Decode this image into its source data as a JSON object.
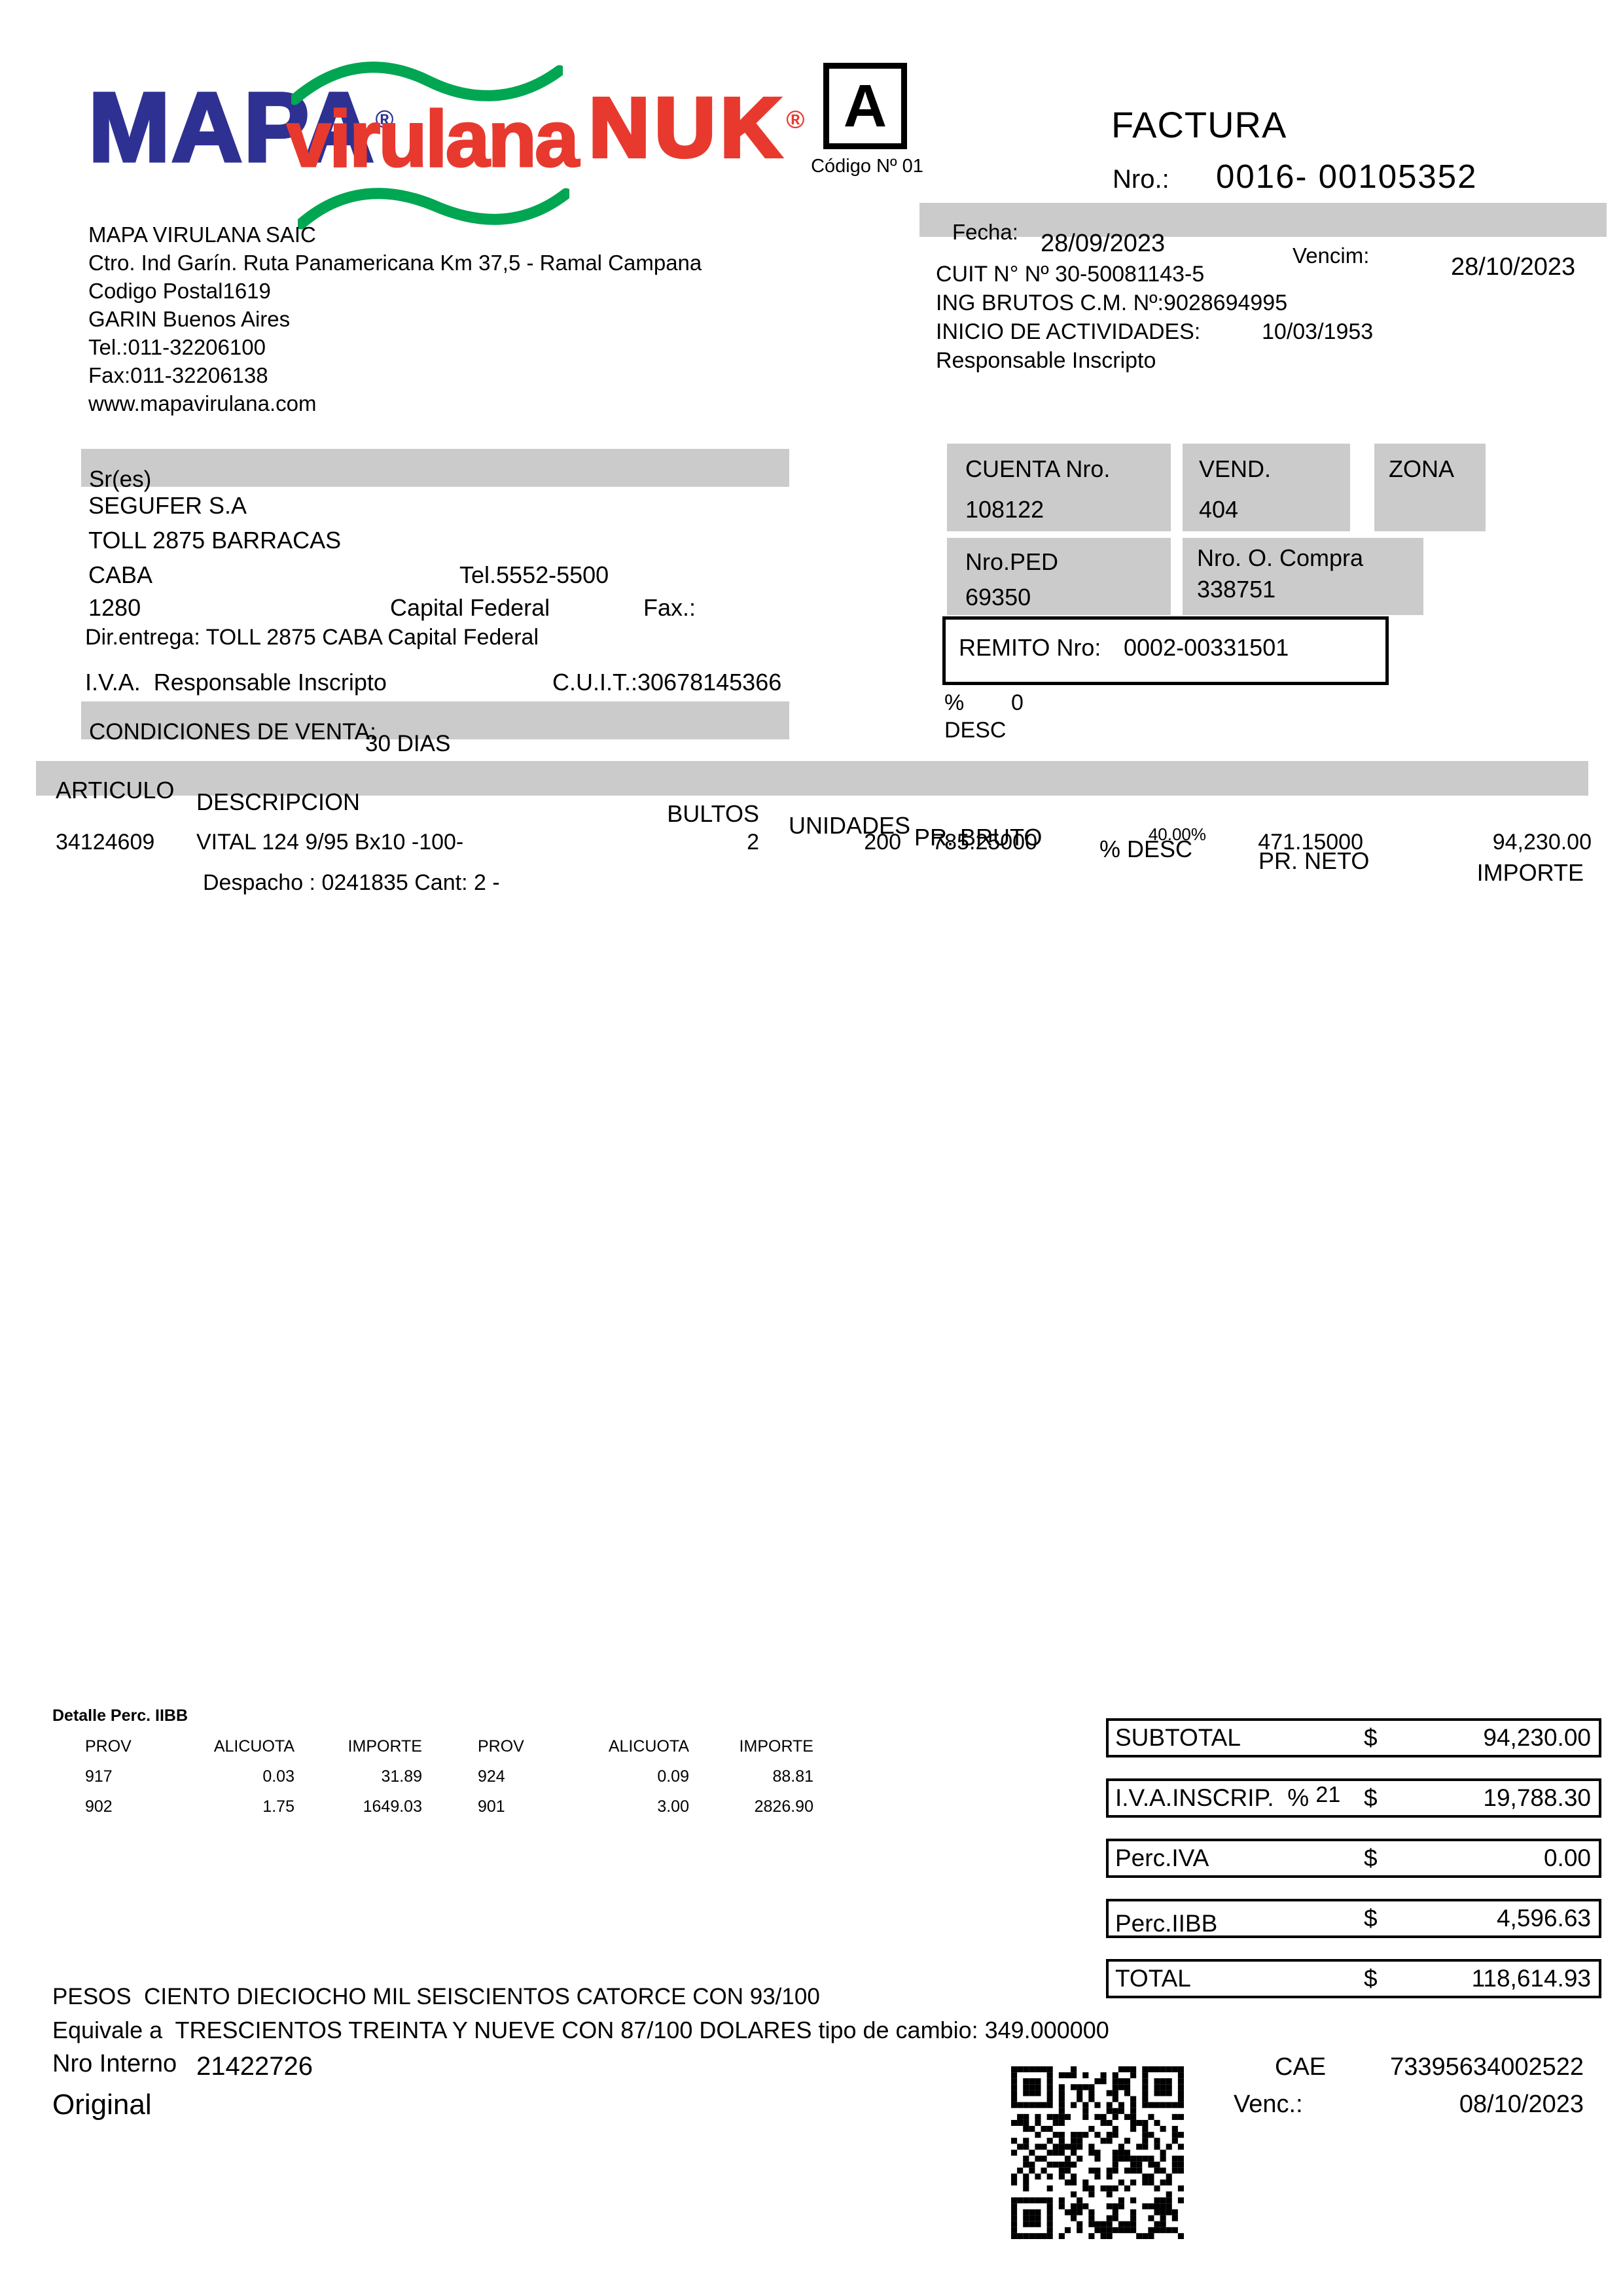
{
  "colors": {
    "mapa_blue": "#2e3192",
    "brand_red": "#e8392e",
    "wave_green": "#00a651",
    "bar_gray": "#cbcbcb"
  },
  "logos": {
    "mapa": "MAPA",
    "virulana": "virulana",
    "nuk": "NUK",
    "registered": "®"
  },
  "doc": {
    "letter": "A",
    "code_label": "Código Nº 01",
    "title": "FACTURA",
    "nro_label": "Nro.:",
    "nro_value": "0016- 00105352",
    "fecha_label": "Fecha:",
    "fecha_value": "28/09/2023",
    "vencim_label": "Vencim:",
    "vencim_value": "28/10/2023"
  },
  "company": {
    "lines": [
      "MAPA VIRULANA SAIC",
      "Ctro. Ind Garín. Ruta Panamericana Km 37,5 - Ramal Campana",
      "Codigo Postal1619",
      "GARIN Buenos Aires",
      "Tel.:011-32206100",
      "Fax:011-32206138",
      "www.mapavirulana.com"
    ]
  },
  "fiscal": {
    "cuit": "CUIT N° Nº 30-50081143-5",
    "ing_brutos": "ING BRUTOS C.M. Nº:9028694995",
    "inicio_label": "INICIO DE ACTIVIDADES:",
    "inicio_value": "10/03/1953",
    "condicion": "Responsable Inscripto"
  },
  "customer": {
    "sres_label": "Sr(es)",
    "name": "SEGUFER S.A",
    "address": "TOLL 2875 BARRACAS",
    "city": "CABA",
    "tel": "Tel.5552-5500",
    "zip": "1280",
    "province": "Capital Federal",
    "fax_label": "Fax.:",
    "dir_entrega": "Dir.entrega: TOLL 2875 CABA Capital Federal",
    "iva_line": "I.V.A.  Responsable Inscripto",
    "cuit": "C.U.I.T.:30678145366",
    "cond_venta_label": "CONDICIONES DE VENTA:",
    "cond_venta_value": "30 DIAS"
  },
  "account": {
    "cuenta_label": "CUENTA Nro.",
    "cuenta_value": "108122",
    "vend_label": "VEND.",
    "vend_value": "404",
    "zona_label": "ZONA",
    "ped_label": "Nro.PED",
    "ped_value": "69350",
    "ocompra_label": "Nro. O. Compra",
    "ocompra_value": "338751",
    "remito_label": "REMITO Nro:",
    "remito_value": "0002-00331501",
    "desc_pct_label": "%",
    "desc_pct_value": "0",
    "desc_label": "DESC"
  },
  "items": {
    "headers": {
      "articulo": "ARTICULO",
      "descripcion": "DESCRIPCION",
      "bultos": "BULTOS",
      "unidades": "UNIDADES",
      "pr_bruto": "PR. BRUTO",
      "desc": "% DESC",
      "pr_neto": "PR. NETO",
      "importe": "IMPORTE"
    },
    "row": {
      "articulo": "34124609",
      "descripcion": "VITAL 124 9/95 Bx10 -100-",
      "bultos": "2",
      "unidades": "200",
      "pr_bruto": "785.25000",
      "desc": "40.00%",
      "pr_neto": "471.15000",
      "importe": "94,230.00",
      "note": "Despacho : 0241835 Cant: 2 -"
    }
  },
  "perc_iibb": {
    "title": "Detalle Perc. IIBB",
    "headers": [
      "PROV",
      "ALICUOTA",
      "IMPORTE",
      "PROV",
      "ALICUOTA",
      "IMPORTE"
    ],
    "rows": [
      [
        "917",
        "0.03",
        "31.89",
        "924",
        "0.09",
        "88.81"
      ],
      [
        "902",
        "1.75",
        "1649.03",
        "901",
        "3.00",
        "2826.90"
      ]
    ]
  },
  "totals": {
    "iva_pct": "21",
    "rows": [
      {
        "label": "SUBTOTAL",
        "cur": "$",
        "value": "94,230.00"
      },
      {
        "label": "I.V.A.INSCRIP.  % ",
        "cur": "$",
        "value": "19,788.30"
      },
      {
        "label": "Perc.IVA",
        "cur": "$",
        "value": "0.00"
      },
      {
        "label": "Perc.IIBB",
        "cur": "$",
        "value": "4,596.63"
      },
      {
        "label": "TOTAL",
        "cur": "$",
        "value": "118,614.93"
      }
    ]
  },
  "footer": {
    "amount_words": "PESOS  CIENTO DIECIOCHO MIL SEISCIENTOS CATORCE CON 93/100",
    "equivalente": "Equivale a  TRESCIENTOS TREINTA Y NUEVE CON 87/100 DOLARES tipo de cambio: 349.000000",
    "nro_interno_label": "Nro Interno",
    "nro_interno_value": "21422726",
    "original": "Original",
    "cae_label": "CAE",
    "cae_value": "73395634002522",
    "cae_venc_label": "Venc.:",
    "cae_venc_value": "08/10/2023"
  }
}
